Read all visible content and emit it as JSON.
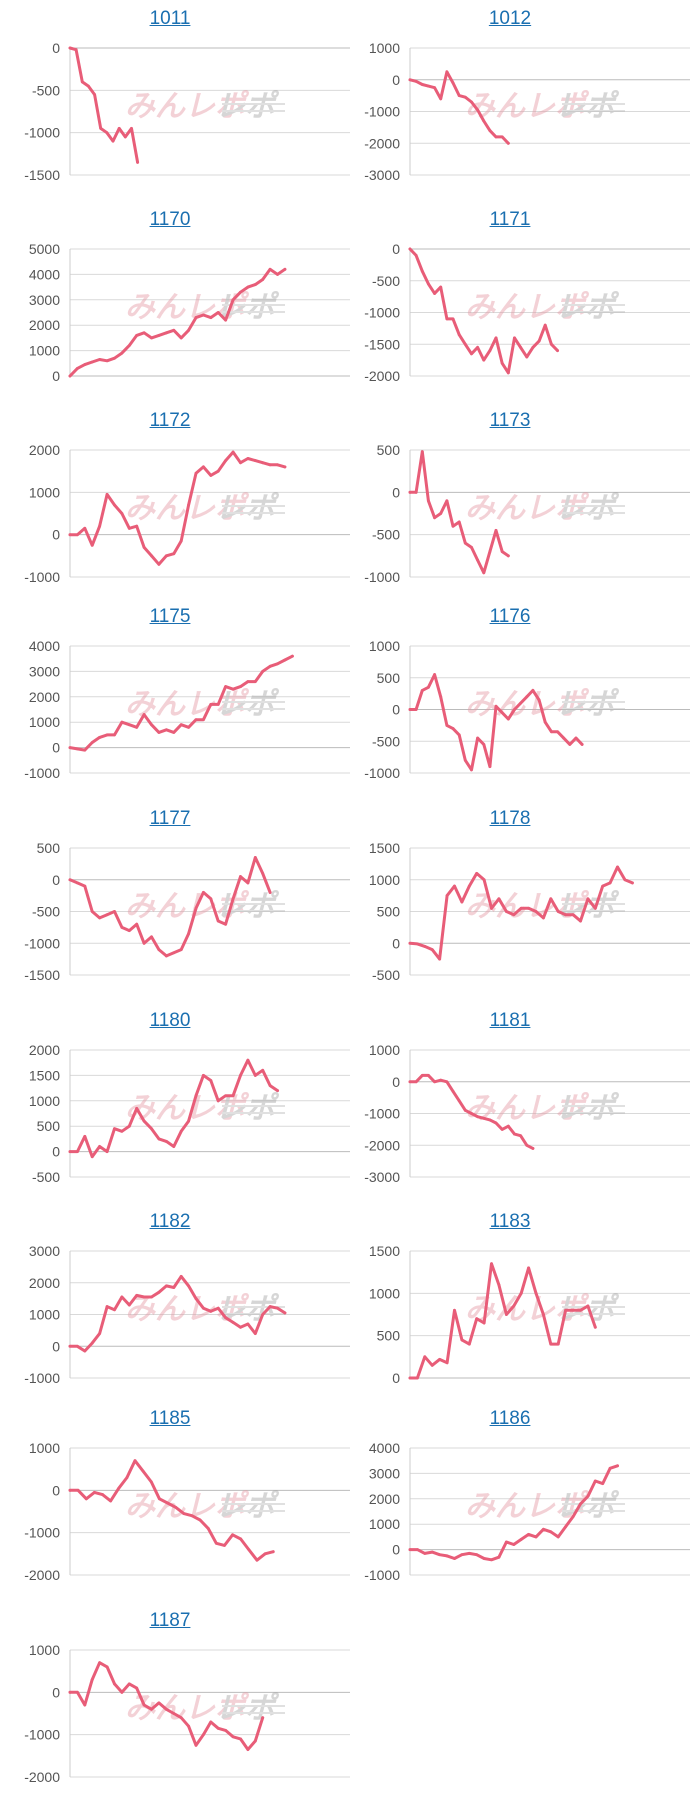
{
  "colors": {
    "line": "#e85d78",
    "grid": "#d9d9d9",
    "axis": "#cccccc",
    "title": "#1a6fb0",
    "tick": "#555555"
  },
  "watermark": {
    "left": "みんレポ",
    "right": "レポ"
  },
  "chart_data": [
    {
      "type": "line",
      "title": "1011",
      "yticks": [
        0,
        -500,
        -1000,
        -1500
      ],
      "ylim": [
        -1500,
        0
      ],
      "values": [
        0,
        -20,
        -400,
        -450,
        -550,
        -950,
        -1000,
        -1100,
        -950,
        -1050,
        -950,
        -1350
      ],
      "xmax": 41
    },
    {
      "type": "line",
      "title": "1012",
      "yticks": [
        1000,
        0,
        -1000,
        -2000,
        -3000
      ],
      "ylim": [
        -3000,
        1000
      ],
      "values": [
        0,
        -50,
        -150,
        -200,
        -250,
        -600,
        250,
        -100,
        -500,
        -550,
        -700,
        -950,
        -1300,
        -1600,
        -1800,
        -1800,
        -2000
      ],
      "xmax": 41
    },
    {
      "type": "line",
      "title": "1170",
      "yticks": [
        5000,
        4000,
        3000,
        2000,
        1000,
        0
      ],
      "ylim": [
        0,
        5000
      ],
      "values": [
        0,
        300,
        450,
        550,
        650,
        600,
        700,
        900,
        1200,
        1600,
        1700,
        1500,
        1600,
        1700,
        1800,
        1500,
        1800,
        2300,
        2400,
        2300,
        2500,
        2200,
        3000,
        3300,
        3500,
        3600,
        3800,
        4200,
        4000,
        4200
      ],
      "xmax": 34
    },
    {
      "type": "line",
      "title": "1171",
      "yticks": [
        0,
        -500,
        -1000,
        -1500,
        -2000
      ],
      "ylim": [
        -2000,
        0
      ],
      "values": [
        0,
        -100,
        -350,
        -550,
        -700,
        -600,
        -1100,
        -1100,
        -1350,
        -1500,
        -1650,
        -1550,
        -1750,
        -1600,
        -1400,
        -1800,
        -1950,
        -1400,
        -1550,
        -1700,
        -1550,
        -1450,
        -1200,
        -1500,
        -1600
      ],
      "xmax": 41
    },
    {
      "type": "line",
      "title": "1172",
      "yticks": [
        2000,
        1000,
        0,
        -1000
      ],
      "ylim": [
        -1000,
        2000
      ],
      "values": [
        0,
        0,
        150,
        -250,
        200,
        950,
        700,
        500,
        150,
        200,
        -300,
        -500,
        -700,
        -500,
        -450,
        -150,
        700,
        1450,
        1600,
        1400,
        1500,
        1750,
        1950,
        1700,
        1800,
        1750,
        1700,
        1650,
        1650,
        1600
      ],
      "xmax": 34
    },
    {
      "type": "line",
      "title": "1173",
      "yticks": [
        500,
        0,
        -500,
        -1000
      ],
      "ylim": [
        -1000,
        500
      ],
      "values": [
        0,
        0,
        480,
        -100,
        -300,
        -250,
        -100,
        -400,
        -350,
        -600,
        -650,
        -800,
        -950,
        -700,
        -450,
        -700,
        -750
      ],
      "xmax": 41
    },
    {
      "type": "line",
      "title": "1175",
      "yticks": [
        4000,
        3000,
        2000,
        1000,
        0,
        -1000
      ],
      "ylim": [
        -1000,
        4000
      ],
      "values": [
        0,
        -50,
        -100,
        200,
        400,
        500,
        500,
        1000,
        900,
        800,
        1300,
        900,
        600,
        700,
        600,
        900,
        800,
        1100,
        1100,
        1700,
        1700,
        2400,
        2300,
        2400,
        2600,
        2600,
        3000,
        3200,
        3300,
        3450,
        3600
      ],
      "xmax": 34
    },
    {
      "type": "line",
      "title": "1176",
      "yticks": [
        1000,
        500,
        0,
        -500,
        -1000
      ],
      "ylim": [
        -1000,
        1000
      ],
      "values": [
        0,
        0,
        300,
        350,
        550,
        200,
        -250,
        -300,
        -400,
        -800,
        -950,
        -450,
        -550,
        -900,
        50,
        -50,
        -150,
        0,
        100,
        200,
        300,
        150,
        -200,
        -350,
        -350,
        -450,
        -550,
        -450,
        -550
      ],
      "xmax": 41
    },
    {
      "type": "line",
      "title": "1177",
      "yticks": [
        500,
        0,
        -500,
        -1000,
        -1500
      ],
      "ylim": [
        -1500,
        500
      ],
      "values": [
        0,
        -50,
        -100,
        -500,
        -600,
        -550,
        -500,
        -750,
        -800,
        -700,
        -1000,
        -900,
        -1100,
        -1200,
        -1150,
        -1100,
        -850,
        -450,
        -200,
        -300,
        -650,
        -700,
        -300,
        50,
        -50,
        350,
        100,
        -200
      ],
      "xmax": 34
    },
    {
      "type": "line",
      "title": "1178",
      "yticks": [
        1500,
        1000,
        500,
        0,
        -500
      ],
      "ylim": [
        -500,
        1500
      ],
      "values": [
        0,
        -10,
        -50,
        -100,
        -250,
        750,
        900,
        650,
        900,
        1100,
        1000,
        550,
        700,
        500,
        450,
        550,
        550,
        500,
        400,
        700,
        500,
        450,
        450,
        350,
        700,
        550,
        900,
        950,
        1200,
        1000,
        950
      ],
      "xmax": 34
    },
    {
      "type": "line",
      "title": "1180",
      "yticks": [
        2000,
        1500,
        1000,
        500,
        0,
        -500
      ],
      "ylim": [
        -500,
        2000
      ],
      "values": [
        0,
        0,
        300,
        -100,
        100,
        0,
        450,
        400,
        500,
        850,
        600,
        450,
        250,
        200,
        100,
        400,
        600,
        1100,
        1500,
        1400,
        1000,
        1100,
        1100,
        1500,
        1800,
        1500,
        1600,
        1300,
        1200
      ],
      "xmax": 34
    },
    {
      "type": "line",
      "title": "1181",
      "yticks": [
        1000,
        0,
        -1000,
        -2000,
        -3000
      ],
      "ylim": [
        -3000,
        1000
      ],
      "values": [
        0,
        0,
        200,
        200,
        0,
        50,
        0,
        -300,
        -600,
        -900,
        -1000,
        -1100,
        -1150,
        -1200,
        -1300,
        -1500,
        -1400,
        -1650,
        -1700,
        -2000,
        -2100
      ],
      "xmax": 41
    },
    {
      "type": "line",
      "title": "1182",
      "yticks": [
        3000,
        2000,
        1000,
        0,
        -1000
      ],
      "ylim": [
        -1000,
        3000
      ],
      "values": [
        0,
        0,
        -150,
        100,
        400,
        1250,
        1150,
        1550,
        1300,
        1600,
        1550,
        1550,
        1700,
        1900,
        1850,
        2200,
        1900,
        1500,
        1200,
        1100,
        1200,
        900,
        750,
        600,
        700,
        400,
        1000,
        1250,
        1200,
        1050
      ],
      "xmax": 34
    },
    {
      "type": "line",
      "title": "1183",
      "yticks": [
        1500,
        1000,
        500,
        0
      ],
      "ylim": [
        0,
        1500
      ],
      "values": [
        0,
        0,
        250,
        150,
        220,
        180,
        800,
        450,
        400,
        700,
        650,
        1350,
        1100,
        750,
        850,
        1000,
        1300,
        1000,
        750,
        400,
        400,
        800,
        800,
        800,
        850,
        600
      ],
      "xmax": 34
    },
    {
      "type": "line",
      "title": "1185",
      "yticks": [
        1000,
        0,
        -1000,
        -2000
      ],
      "ylim": [
        -2000,
        1000
      ],
      "values": [
        0,
        0,
        -200,
        -50,
        -100,
        -250,
        50,
        300,
        700,
        450,
        200,
        -200,
        -300,
        -400,
        -550,
        -600,
        -700,
        -900,
        -1250,
        -1300,
        -1050,
        -1150,
        -1400,
        -1650,
        -1500,
        -1450
      ],
      "xmax": 31
    },
    {
      "type": "line",
      "title": "1186",
      "yticks": [
        4000,
        3000,
        2000,
        1000,
        0,
        -1000
      ],
      "ylim": [
        -1000,
        4000
      ],
      "values": [
        0,
        0,
        -150,
        -100,
        -200,
        -250,
        -350,
        -200,
        -150,
        -200,
        -350,
        -400,
        -300,
        300,
        200,
        400,
        600,
        500,
        800,
        700,
        500,
        900,
        1300,
        1800,
        2100,
        2700,
        2600,
        3200,
        3300
      ],
      "xmax": 34
    },
    {
      "type": "line",
      "title": "1187",
      "yticks": [
        1000,
        0,
        -1000,
        -2000
      ],
      "ylim": [
        -2000,
        1000
      ],
      "values": [
        0,
        0,
        -300,
        300,
        700,
        600,
        200,
        0,
        200,
        100,
        -300,
        -400,
        -250,
        -400,
        -500,
        -600,
        -800,
        -1250,
        -1000,
        -700,
        -850,
        -900,
        -1050,
        -1100,
        -1350,
        -1150,
        -600
      ],
      "xmax": 34
    }
  ]
}
